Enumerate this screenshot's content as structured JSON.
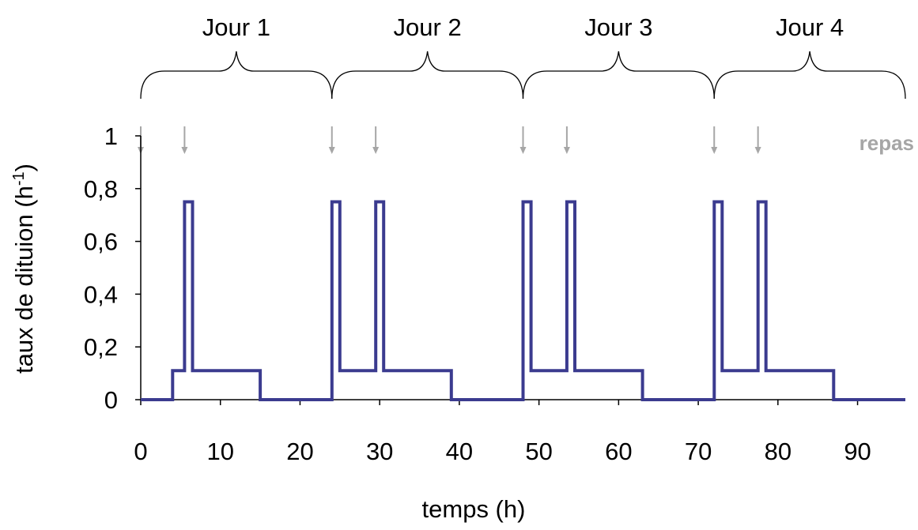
{
  "chart_data": {
    "type": "line",
    "title": "",
    "xlabel": "temps (h)",
    "ylabel_main": "taux de dituion (h",
    "ylabel_sup": "-1",
    "ylabel_close": ")",
    "xlim": [
      0,
      96
    ],
    "ylim": [
      0,
      1
    ],
    "xticks": [
      0,
      10,
      20,
      30,
      40,
      50,
      60,
      70,
      80,
      90
    ],
    "yticks": [
      0,
      0.2,
      0.4,
      0.6,
      0.8,
      1
    ],
    "ytick_labels": [
      "0",
      "0,2",
      "0,4",
      "0,6",
      "0,8",
      "1"
    ],
    "grid": false,
    "series": [
      {
        "color": "#3b3b8f",
        "x": [
          0,
          4,
          4,
          5.5,
          5.5,
          6.5,
          6.5,
          15,
          15,
          24,
          24,
          25,
          25,
          29.5,
          29.5,
          30.5,
          30.5,
          39,
          39,
          48,
          48,
          49,
          49,
          53.5,
          53.5,
          54.5,
          54.5,
          63,
          63,
          72,
          72,
          73,
          73,
          77.5,
          77.5,
          78.5,
          78.5,
          87,
          87,
          96
        ],
        "y": [
          0,
          0,
          0.11,
          0.11,
          0.75,
          0.75,
          0.11,
          0.11,
          0,
          0,
          0.75,
          0.75,
          0.11,
          0.11,
          0.75,
          0.75,
          0.11,
          0.11,
          0,
          0,
          0.75,
          0.75,
          0.11,
          0.11,
          0.75,
          0.75,
          0.11,
          0.11,
          0,
          0,
          0.75,
          0.75,
          0.11,
          0.11,
          0.75,
          0.75,
          0.11,
          0.11,
          0,
          0
        ]
      }
    ],
    "annotations": {
      "days": [
        {
          "label": "Jour 1",
          "start": 0,
          "end": 24
        },
        {
          "label": "Jour 2",
          "start": 24,
          "end": 48
        },
        {
          "label": "Jour 3",
          "start": 48,
          "end": 72
        },
        {
          "label": "Jour 4",
          "start": 72,
          "end": 96
        }
      ],
      "meals": {
        "label": "repas",
        "color": "#a6a6a6",
        "times": [
          0,
          5.5,
          24,
          29.5,
          48,
          53.5,
          72,
          77.5
        ]
      }
    }
  }
}
